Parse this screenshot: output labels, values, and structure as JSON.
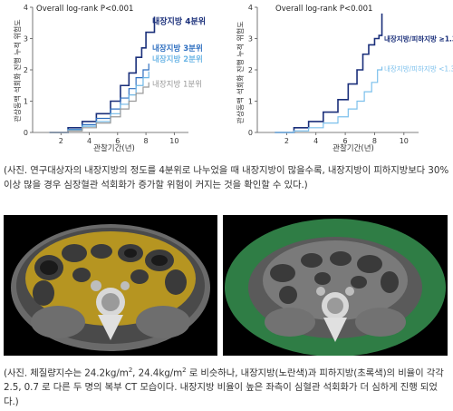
{
  "chart_data": [
    {
      "type": "line",
      "annotation": "Overall log-rank P<0.001",
      "ylabel": "관상동맥 석회화 진행 누적 위험도",
      "xlabel": "관찰기간(년)",
      "x_ticks": [
        "2",
        "4",
        "6",
        "8",
        "10"
      ],
      "y_ticks": [
        "0",
        "1",
        "2",
        "3",
        "4"
      ],
      "xlim": [
        0,
        11
      ],
      "ylim": [
        0,
        4
      ],
      "series": [
        {
          "name": "내장지방 4분위",
          "color": "#1a2f7a",
          "x": [
            1.2,
            2.5,
            3.5,
            4.5,
            5.5,
            6.2,
            6.8,
            7.3,
            7.7,
            8.0,
            8.0,
            8.6,
            8.6
          ],
          "y": [
            0.0,
            0.15,
            0.35,
            0.6,
            1.0,
            1.5,
            1.9,
            2.4,
            2.7,
            2.9,
            3.2,
            3.2,
            3.7
          ]
        },
        {
          "name": "내장지방 3분위",
          "color": "#2f6fc0",
          "x": [
            1.2,
            2.5,
            3.5,
            4.5,
            5.5,
            6.2,
            6.8,
            7.3,
            7.8,
            8.2
          ],
          "y": [
            0.0,
            0.1,
            0.25,
            0.45,
            0.75,
            1.1,
            1.4,
            1.75,
            2.0,
            2.2
          ]
        },
        {
          "name": "내장지방 2분위",
          "color": "#6fb7e6",
          "x": [
            1.2,
            2.5,
            3.5,
            4.5,
            5.5,
            6.2,
            6.8,
            7.3,
            7.8,
            8.2
          ],
          "y": [
            0.0,
            0.08,
            0.2,
            0.35,
            0.6,
            0.9,
            1.2,
            1.5,
            1.75,
            1.95
          ]
        },
        {
          "name": "내장지방 1분위",
          "color": "#999999",
          "x": [
            1.2,
            2.5,
            3.5,
            4.5,
            5.5,
            6.2,
            6.8,
            7.3,
            7.8,
            8.2
          ],
          "y": [
            0.0,
            0.05,
            0.15,
            0.3,
            0.5,
            0.75,
            1.0,
            1.25,
            1.45,
            1.6
          ]
        }
      ]
    },
    {
      "type": "line",
      "annotation": "Overall log-rank P<0.001",
      "ylabel": "관상동맥 석회화 진행 누적 위험도",
      "xlabel": "관찰기간(년)",
      "x_ticks": [
        "2",
        "4",
        "6",
        "8",
        "10"
      ],
      "y_ticks": [
        "0",
        "1",
        "2",
        "3",
        "4"
      ],
      "xlim": [
        0,
        11
      ],
      "ylim": [
        0,
        4
      ],
      "series": [
        {
          "name": "내장지방/피하지방 ≥1.30",
          "color": "#1a2f7a",
          "x": [
            1.2,
            2.5,
            3.5,
            4.5,
            5.5,
            6.2,
            6.8,
            7.2,
            7.6,
            8.0,
            8.3,
            8.5,
            8.5
          ],
          "y": [
            0.0,
            0.15,
            0.35,
            0.65,
            1.05,
            1.55,
            2.0,
            2.5,
            2.8,
            3.0,
            3.1,
            3.2,
            3.8
          ]
        },
        {
          "name": "내장지방/피하지방 <1.30",
          "color": "#7cc0ec",
          "x": [
            1.2,
            2.5,
            3.5,
            4.5,
            5.5,
            6.2,
            6.8,
            7.3,
            7.8,
            8.2,
            8.5
          ],
          "y": [
            0.0,
            0.05,
            0.15,
            0.3,
            0.5,
            0.75,
            1.0,
            1.3,
            1.6,
            2.0,
            2.1
          ]
        }
      ]
    }
  ],
  "captions": {
    "top": "(사진. 연구대상자의 내장지방의 정도를 4분위로 나누었을 때 내장지방이 많을수록, 내장지방이 피하지방보다 30% 이상 많을 경우 심장혈관 석회화가 증가할 위험이 커지는 것을 확인할 수 있다.)",
    "bottom_part1": "(사진. 체질량지수는 24.2kg/m",
    "sup1": "2",
    "bottom_part2": ", 24.4kg/m",
    "sup2": "2",
    "bottom_part3": " 로 비슷하나, 내장지방(노란색)과 피하지방(초록색)의 비율이 각각 2.5, 0.7 로 다른 두 명의 복부 CT 모습이다. 내장지방 비율이 높은 좌측이 심혈관 석회화가 더 심하게 진행 되었다.)"
  },
  "colors": {
    "visceral_fat": "#c9a21a",
    "subcutaneous_fat": "#2f7d45"
  }
}
